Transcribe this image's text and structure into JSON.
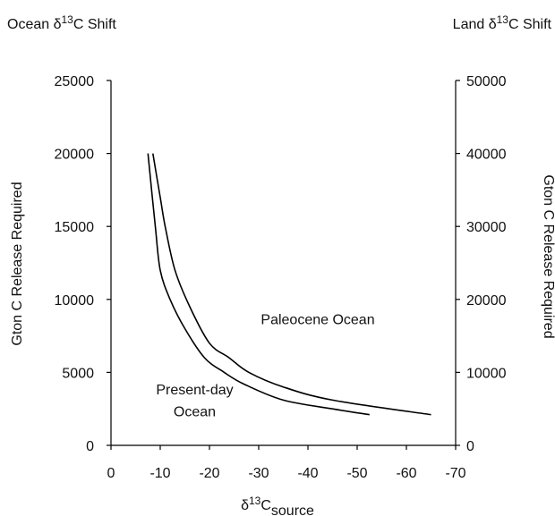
{
  "chart_data": {
    "type": "line",
    "top_left_label": {
      "prefix": "Ocean δ",
      "sup": "13",
      "suffix": "C Shift"
    },
    "top_right_label": {
      "prefix": "Land δ",
      "sup": "13",
      "suffix": "C Shift"
    },
    "xlabel": {
      "prefix": "δ",
      "sup": "13",
      "base": "C",
      "sub": "source"
    },
    "ylabel_left": "Gton C Release Required",
    "ylabel_right": "Gton C Release Required",
    "xlim": [
      0,
      -70
    ],
    "ylim_left": [
      0,
      25000
    ],
    "ylim_right": [
      0,
      50000
    ],
    "x_ticks": [
      0,
      -10,
      -20,
      -30,
      -40,
      -50,
      -60,
      -70
    ],
    "x_tick_labels": [
      "0",
      "-10",
      "-20",
      "-30",
      "-40",
      "-50",
      "-60",
      "-70"
    ],
    "y_left_ticks": [
      0,
      5000,
      10000,
      15000,
      20000,
      25000
    ],
    "y_left_tick_labels": [
      "0",
      "5000",
      "10000",
      "15000",
      "20000",
      "25000"
    ],
    "y_right_ticks": [
      0,
      10000,
      20000,
      30000,
      40000,
      50000
    ],
    "y_right_tick_labels": [
      "0",
      "10000",
      "20000",
      "30000",
      "40000",
      "50000"
    ],
    "series": [
      {
        "id": "present",
        "x": [
          -7.5,
          -9,
          -10,
          -12,
          -15,
          -19,
          -23,
          -27,
          -35,
          -45,
          -52.5
        ],
        "y": [
          20000,
          15000,
          12000,
          10000,
          8000,
          6000,
          5000,
          4200,
          3100,
          2500,
          2100
        ]
      },
      {
        "id": "paleocene",
        "x": [
          -8.5,
          -10,
          -11,
          -13,
          -16,
          -20,
          -24,
          -28,
          -35,
          -45,
          -65
        ],
        "y": [
          20000,
          17000,
          15000,
          12000,
          9500,
          7000,
          6000,
          5000,
          4000,
          3100,
          2100
        ]
      }
    ],
    "annotations": [
      {
        "id": "paleocene-label",
        "text": "Paleocene Ocean",
        "x": -42,
        "y": 8300
      },
      {
        "id": "present-label-1",
        "text": "Present-day",
        "x": -17,
        "y": 3500
      },
      {
        "id": "present-label-2",
        "text": "Ocean",
        "x": -17,
        "y": 2000
      }
    ]
  }
}
